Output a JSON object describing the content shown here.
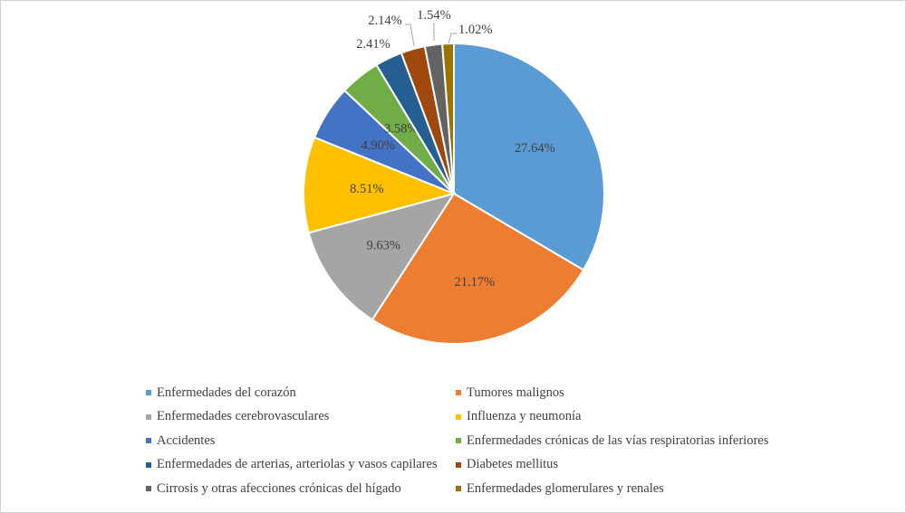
{
  "chart_data": {
    "type": "pie",
    "series": [
      {
        "label": "Enfermedades del corazón",
        "value": 27.64,
        "value_label": "27.64%",
        "color": "#5B9BD5"
      },
      {
        "label": "Tumores malignos",
        "value": 21.17,
        "value_label": "21.17%",
        "color": "#ED7D31"
      },
      {
        "label": "Enfermedades cerebrovasculares",
        "value": 9.63,
        "value_label": "9.63%",
        "color": "#A5A5A5"
      },
      {
        "label": "Influenza y neumonía",
        "value": 8.51,
        "value_label": "8.51%",
        "color": "#FFC000"
      },
      {
        "label": "Accidentes",
        "value": 4.9,
        "value_label": "4.90%",
        "color": "#4472C4"
      },
      {
        "label": "Enfermedades crónicas de las vías respiratorias inferiores",
        "value": 3.58,
        "value_label": "3.58%",
        "color": "#70AD47"
      },
      {
        "label": "Enfermedades de arterias, arteriolas y vasos capilares",
        "value": 2.41,
        "value_label": "2.41%",
        "color": "#255E91"
      },
      {
        "label": "Diabetes mellitus",
        "value": 2.14,
        "value_label": "2.14%",
        "color": "#9E480E"
      },
      {
        "label": "Cirrosis y otras afecciones crónicas del hígado",
        "value": 1.54,
        "value_label": "1.54%",
        "color": "#636363"
      },
      {
        "label": "Enfermedades glomerulares y renales",
        "value": 1.02,
        "value_label": "1.02%",
        "color": "#997300"
      }
    ],
    "legend_position": "bottom"
  }
}
